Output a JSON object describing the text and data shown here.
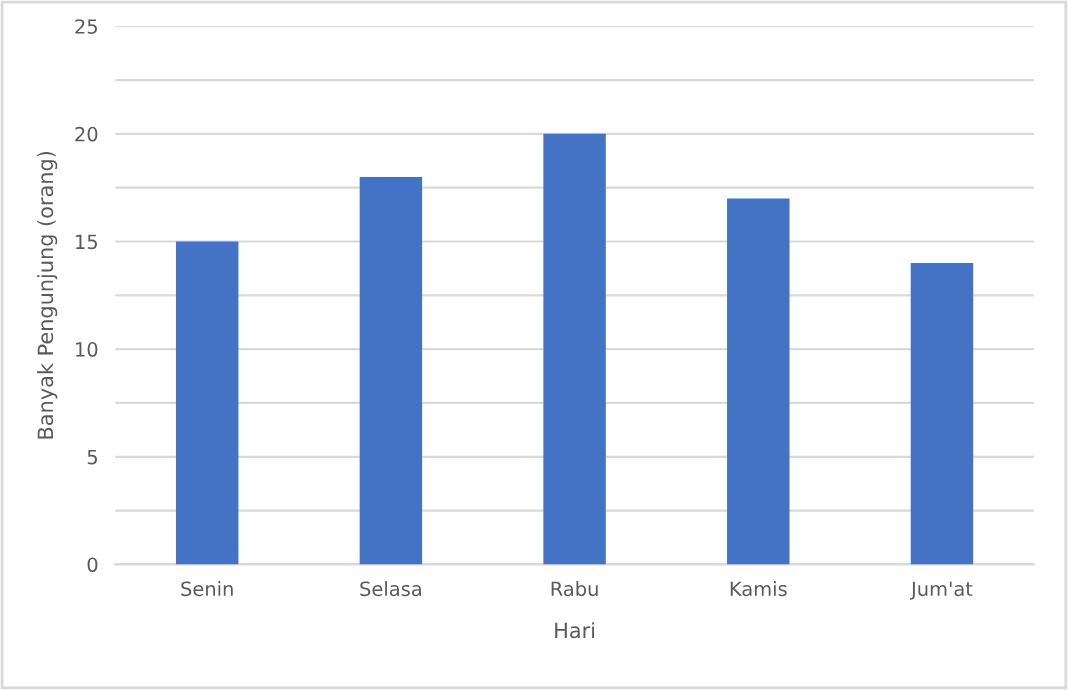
{
  "chart_data": {
    "type": "bar",
    "xlabel": "Hari",
    "ylabel": "Banyak Pengunjung (orang)",
    "categories": [
      "Senin",
      "Selasa",
      "Rabu",
      "Kamis",
      "Jum'at"
    ],
    "values": [
      15,
      18,
      20,
      17,
      14
    ],
    "color": "#4472c4",
    "ylim": [
      0,
      25
    ],
    "yticks": [
      0,
      {
        "value": 2.5,
        "label": null
      },
      5,
      {
        "value": 7.5,
        "label": null
      },
      10,
      {
        "value": 12.5,
        "label": null
      },
      15,
      {
        "value": 17.5,
        "label": null
      },
      20,
      {
        "value": 22.5,
        "label": null
      },
      25
    ],
    "grid": "y",
    "legend": false
  }
}
